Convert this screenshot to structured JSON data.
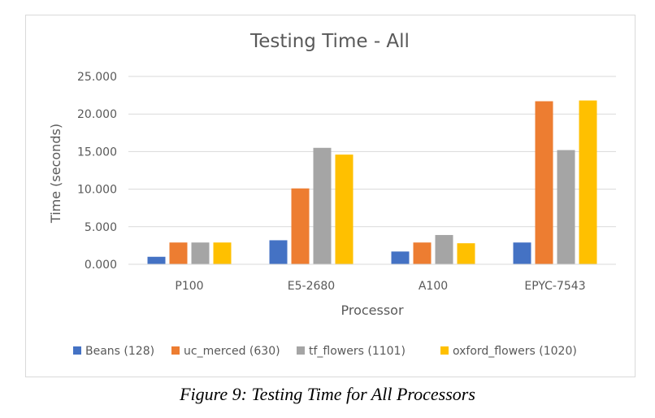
{
  "chart_data": {
    "type": "bar",
    "title": "Testing Time - All",
    "xlabel": "Processor",
    "ylabel": "Time (seconds)",
    "categories": [
      "P100",
      "E5-2680",
      "A100",
      "EPYC-7543"
    ],
    "ylim": [
      0,
      25
    ],
    "yticks": [
      0,
      5,
      10,
      15,
      20,
      25
    ],
    "ytick_labels": [
      "0.000",
      "5.000",
      "10.000",
      "15.000",
      "20.000",
      "25.000"
    ],
    "grid": true,
    "legend_position": "bottom",
    "series": [
      {
        "name": "Beans (128)",
        "color": "#4472c4",
        "values": [
          1.0,
          3.2,
          1.7,
          2.9
        ]
      },
      {
        "name": "uc_merced (630)",
        "color": "#ed7d31",
        "values": [
          2.9,
          10.1,
          2.9,
          21.7
        ]
      },
      {
        "name": "tf_flowers (1101)",
        "color": "#a5a5a5",
        "values": [
          2.9,
          15.5,
          3.9,
          15.2
        ]
      },
      {
        "name": "oxford_flowers (1020)",
        "color": "#ffc000",
        "values": [
          2.9,
          14.6,
          2.8,
          21.8
        ]
      }
    ]
  },
  "caption": "Figure 9: Testing Time for All Processors"
}
